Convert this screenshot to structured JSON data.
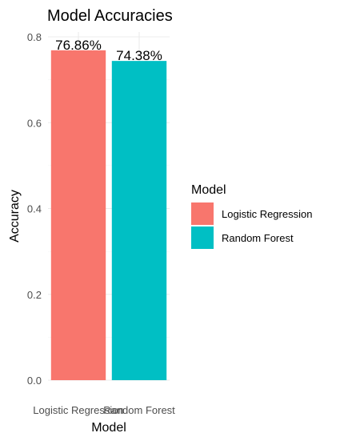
{
  "chart_data": {
    "type": "bar",
    "title": "Model Accuracies",
    "xlabel": "Model",
    "ylabel": "Accuracy",
    "categories": [
      "Logistic Regression",
      "Random Forest"
    ],
    "values": [
      0.7686,
      0.7438
    ],
    "data_labels": [
      "76.86%",
      "74.38%"
    ],
    "colors": [
      "#F8766D",
      "#00BFC4"
    ],
    "y_ticks": [
      0.0,
      0.2,
      0.4,
      0.6,
      0.8
    ],
    "y_tick_labels": [
      "0.0",
      "0.2",
      "0.4",
      "0.6",
      "0.8"
    ],
    "ylim": [
      0,
      0.8
    ],
    "grid": true,
    "legend": {
      "title": "Model",
      "placement": "right",
      "entries": [
        "Logistic Regression",
        "Random Forest"
      ]
    }
  }
}
